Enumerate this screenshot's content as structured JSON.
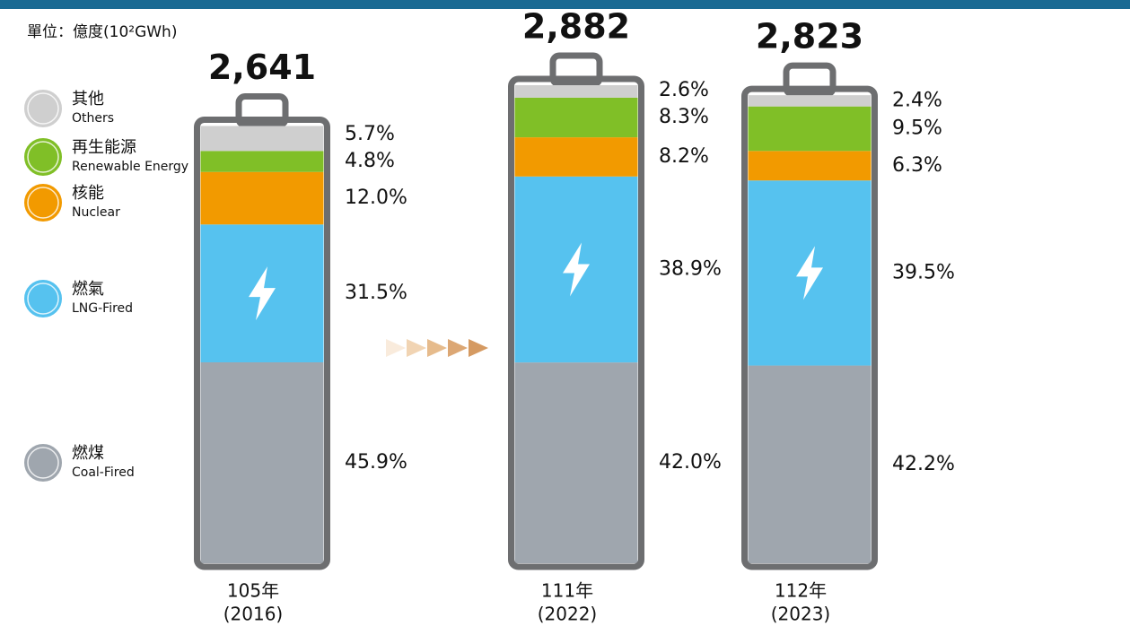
{
  "chart_data": {
    "type": "battery",
    "unit_label": "單位：億度(10²GWh)",
    "categories": [
      "105年",
      "111年",
      "112年"
    ],
    "category_years": [
      "(2016)",
      "(2022)",
      "(2023)"
    ],
    "totals": {
      "values": [
        2641,
        2882,
        2823
      ],
      "value_labels": [
        "2,641",
        "2,882",
        "2,823"
      ]
    },
    "series": [
      {
        "name": "燃煤",
        "name_en": "Coal-Fired",
        "color": "#9fa6ae",
        "values": [
          45.9,
          42.0,
          42.2
        ],
        "value_labels": [
          "45.9%",
          "42.0%",
          "42.2%"
        ]
      },
      {
        "name": "燃氣",
        "name_en": "LNG-Fired",
        "color": "#56c2ef",
        "values": [
          31.5,
          38.9,
          39.5
        ],
        "value_labels": [
          "31.5%",
          "38.9%",
          "39.5%"
        ]
      },
      {
        "name": "核能",
        "name_en": "Nuclear",
        "color": "#f29a00",
        "values": [
          12.0,
          8.2,
          6.3
        ],
        "value_labels": [
          "12.0%",
          "8.2%",
          "6.3%"
        ]
      },
      {
        "name": "再生能源",
        "name_en": "Renewable Energy",
        "color": "#80bf27",
        "values": [
          4.8,
          8.3,
          9.5
        ],
        "value_labels": [
          "4.8%",
          "8.3%",
          "9.5%"
        ]
      },
      {
        "name": "其他",
        "name_en": "Others",
        "color": "#cfcfcf",
        "values": [
          5.7,
          2.6,
          2.4
        ],
        "value_labels": [
          "5.7%",
          "2.6%",
          "2.4%"
        ]
      }
    ]
  }
}
